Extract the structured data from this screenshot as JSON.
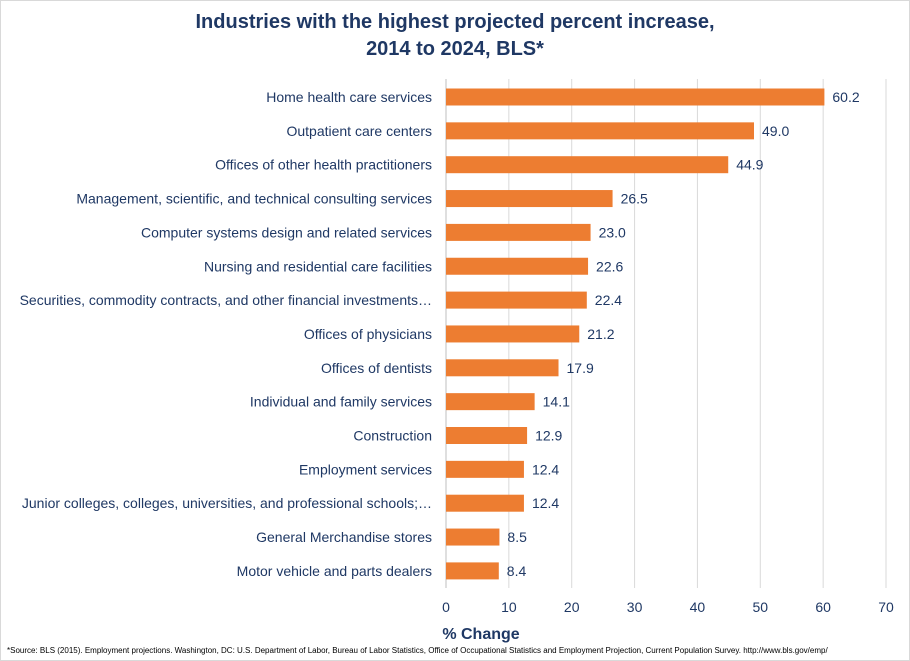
{
  "chart_data": {
    "type": "bar",
    "orientation": "horizontal",
    "title_lines": [
      "Industries  with the highest projected  percent increase,",
      "2014 to 2024, BLS*"
    ],
    "xlabel": "% Change",
    "ylabel": "",
    "xlim": [
      0,
      70
    ],
    "xticks": [
      0,
      10,
      20,
      30,
      40,
      50,
      60,
      70
    ],
    "grid": true,
    "legend": "none",
    "bar_color": "#ED7D31",
    "text_color": "#1F3864",
    "grid_color": "#D9D9D9",
    "categories": [
      "Home health care services",
      "Outpatient care centers",
      "Offices of other health practitioners",
      "Management, scientific, and technical consulting services",
      "Computer systems design and related services",
      "Nursing and residential care facilities",
      "Securities, commodity contracts, and other financial investments…",
      "Offices of physicians",
      "Offices of dentists",
      "Individual and family services",
      "Construction",
      "Employment services",
      "Junior colleges, colleges, universities, and professional schools;…",
      "General Merchandise stores",
      "Motor vehicle and parts dealers"
    ],
    "values": [
      60.2,
      49.0,
      44.9,
      26.5,
      23.0,
      22.6,
      22.4,
      21.2,
      17.9,
      14.1,
      12.9,
      12.4,
      12.4,
      8.5,
      8.4
    ],
    "value_labels": [
      "60.2",
      "49.0",
      "44.9",
      "26.5",
      "23.0",
      "22.6",
      "22.4",
      "21.2",
      "17.9",
      "14.1",
      "12.9",
      "12.4",
      "12.4",
      "8.5",
      "8.4"
    ]
  },
  "source_note": "*Source: BLS (2015). Employment projections. Washington, DC: U.S. Department of Labor, Bureau of Labor Statistics, Office of Occupational Statistics and Employment Projection, Current Population Survey. http://www.bls.gov/emp/"
}
